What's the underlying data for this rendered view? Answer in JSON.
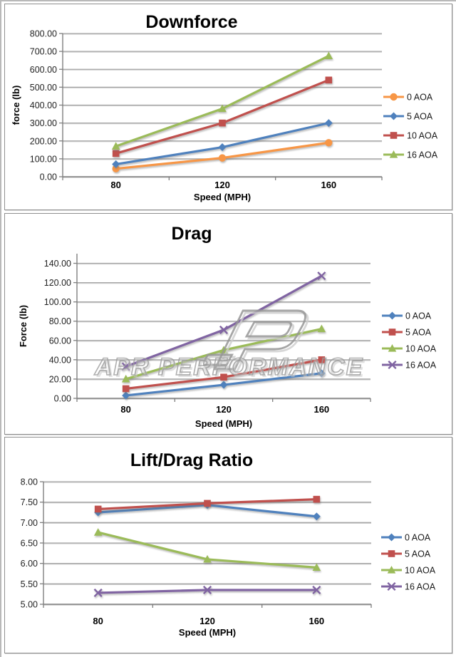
{
  "watermark": {
    "text": "APR PERFORMANCE"
  },
  "chart_data": [
    {
      "id": "downforce",
      "type": "line",
      "title": "Downforce",
      "xlabel": "Speed (MPH)",
      "ylabel": "force (lb)",
      "categories": [
        "80",
        "120",
        "160"
      ],
      "x_values": [
        80,
        120,
        160
      ],
      "ymin": 0,
      "ymax": 800,
      "ystep": 100,
      "ylim": [
        0,
        800
      ],
      "ytick_labels": [
        "0.00",
        "100.00",
        "200.00",
        "300.00",
        "400.00",
        "500.00",
        "600.00",
        "700.00",
        "800.00"
      ],
      "grid": true,
      "legend_position": "right",
      "series": [
        {
          "name": "0 AOA",
          "color": "#F79646",
          "marker": "circle",
          "values": [
            45,
            105,
            190
          ]
        },
        {
          "name": "5 AOA",
          "color": "#4F81BD",
          "marker": "diamond",
          "values": [
            70,
            165,
            300
          ]
        },
        {
          "name": "10 AOA",
          "color": "#C0504D",
          "marker": "square",
          "values": [
            130,
            300,
            540
          ]
        },
        {
          "name": "16 AOA",
          "color": "#9BBB59",
          "marker": "triangle",
          "values": [
            170,
            380,
            675
          ]
        }
      ]
    },
    {
      "id": "drag",
      "type": "line",
      "title": "Drag",
      "xlabel": "Speed (MPH)",
      "ylabel": "Force (lb)",
      "categories": [
        "80",
        "120",
        "160"
      ],
      "x_values": [
        80,
        120,
        160
      ],
      "ymin": 0,
      "ymax": 150,
      "ystep": 20,
      "ylim": [
        0,
        150
      ],
      "ytick_labels": [
        "0.00",
        "20.00",
        "40.00",
        "60.00",
        "80.00",
        "100.00",
        "120.00",
        "140.00"
      ],
      "grid": true,
      "legend_position": "right",
      "series": [
        {
          "name": "0 AOA",
          "color": "#4F81BD",
          "marker": "diamond",
          "values": [
            3,
            14,
            26
          ]
        },
        {
          "name": "5 AOA",
          "color": "#C0504D",
          "marker": "square",
          "values": [
            10,
            22,
            40
          ]
        },
        {
          "name": "10 AOA",
          "color": "#9BBB59",
          "marker": "triangle",
          "values": [
            20,
            50,
            72
          ]
        },
        {
          "name": "16 AOA",
          "color": "#8064A2",
          "marker": "x",
          "values": [
            33,
            71,
            127
          ]
        }
      ]
    },
    {
      "id": "lift-drag-ratio",
      "type": "line",
      "title": "Lift/Drag Ratio",
      "xlabel": "Speed (MPH)",
      "ylabel": "",
      "categories": [
        "80",
        "120",
        "160"
      ],
      "x_values": [
        80,
        120,
        160
      ],
      "ymin": 5,
      "ymax": 8,
      "ystep": 0.5,
      "ylim": [
        5,
        8
      ],
      "ytick_labels": [
        "5.00",
        "5.50",
        "6.00",
        "6.50",
        "7.00",
        "7.50",
        "8.00"
      ],
      "grid": true,
      "legend_position": "right",
      "series": [
        {
          "name": "0 AOA",
          "color": "#4F81BD",
          "marker": "diamond",
          "values": [
            7.25,
            7.43,
            7.15
          ]
        },
        {
          "name": "5 AOA",
          "color": "#C0504D",
          "marker": "square",
          "values": [
            7.33,
            7.47,
            7.57
          ]
        },
        {
          "name": "10 AOA",
          "color": "#9BBB59",
          "marker": "triangle",
          "values": [
            6.76,
            6.1,
            5.9
          ]
        },
        {
          "name": "16 AOA",
          "color": "#8064A2",
          "marker": "x",
          "values": [
            5.28,
            5.35,
            5.35
          ]
        }
      ]
    }
  ]
}
